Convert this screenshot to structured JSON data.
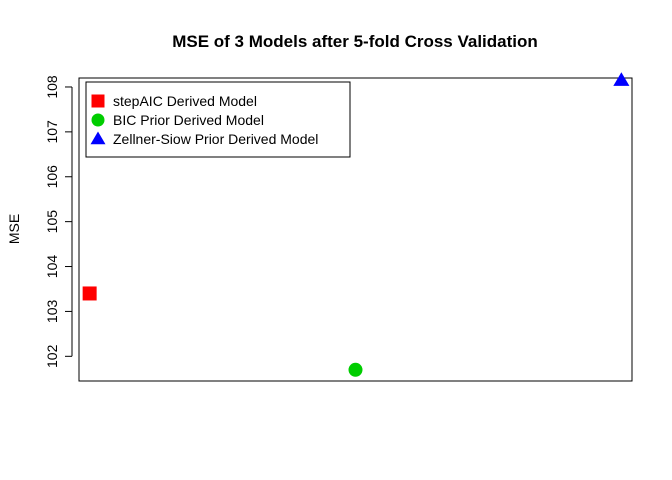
{
  "chart_data": {
    "type": "scatter",
    "title": "MSE of 3 Models after 5-fold Cross Validation",
    "xlabel": "",
    "ylabel": "MSE",
    "ylim": [
      101.45,
      108.2
    ],
    "xlim": [
      0.96,
      3.04
    ],
    "y_ticks": [
      102,
      103,
      104,
      105,
      106,
      107,
      108
    ],
    "x_axis_shown": false,
    "grid": false,
    "legend_position": "top-left",
    "series": [
      {
        "name": "stepAIC Derived Model",
        "marker": "square",
        "color": "#ff0000",
        "x": 1,
        "y": 103.4
      },
      {
        "name": "BIC Prior Derived Model",
        "marker": "circle",
        "color": "#00cd00",
        "x": 2,
        "y": 101.7
      },
      {
        "name": "Zellner-Siow Prior Derived Model",
        "marker": "triangle",
        "color": "#0000ff",
        "x": 3,
        "y": 108.15
      }
    ]
  }
}
